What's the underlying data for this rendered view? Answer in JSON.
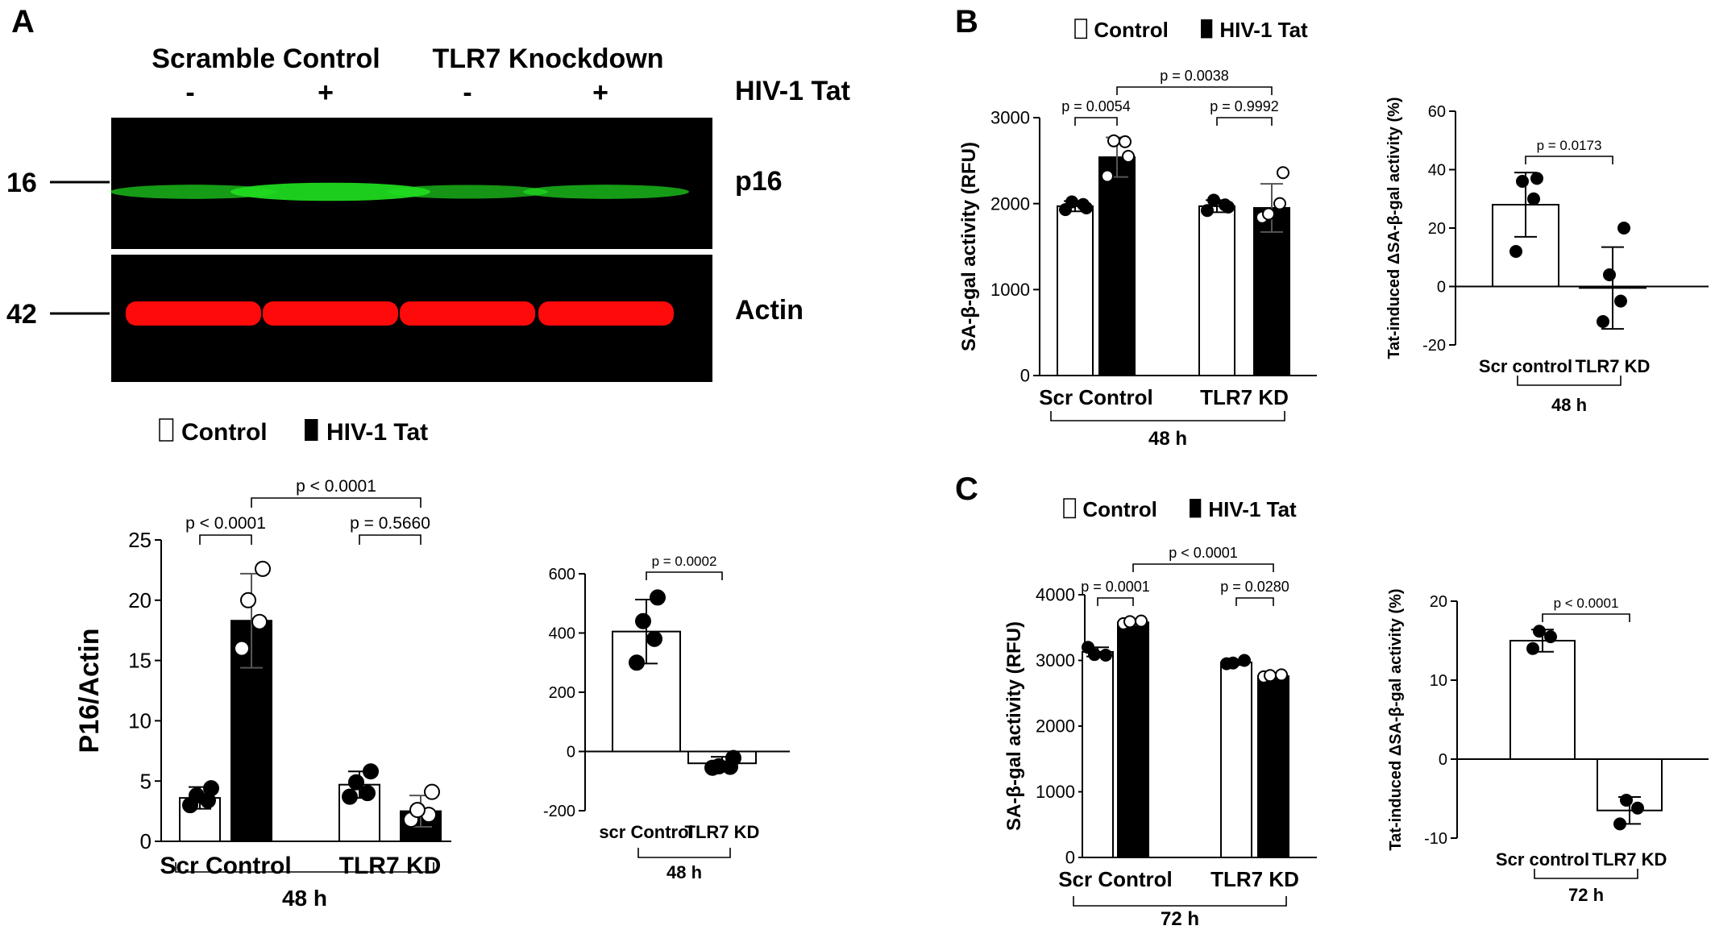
{
  "panels": {
    "A": "A",
    "B": "B",
    "C": "C"
  },
  "western_blot": {
    "group_left": "Scramble Control",
    "group_right": "TLR7 Knockdown",
    "lane_signs": [
      "-",
      "+",
      "-",
      "+"
    ],
    "treatment_label": "HIV-1 Tat",
    "marker_top": "16",
    "marker_bottom": "42",
    "band_label_top": "p16",
    "band_label_bottom": "Actin",
    "band_color_top": "#1fdc1f",
    "band_color_bottom": "#ff0a0a",
    "band_intensity_top": [
      0.55,
      0.9,
      0.5,
      0.55
    ],
    "band_intensity_bottom": [
      1,
      1,
      1,
      1
    ]
  },
  "legend": {
    "control": "Control",
    "tat": "HIV-1 Tat"
  },
  "chart_data": [
    {
      "id": "A-main",
      "type": "bar",
      "ylabel": "P16/Actin",
      "ylim": [
        0,
        25
      ],
      "yticks": [
        "0",
        "5",
        "10",
        "15",
        "20",
        "25"
      ],
      "group_labels": [
        "Scr Control",
        "TLR7 KD"
      ],
      "time_label": "48 h",
      "series": [
        {
          "name": "Control",
          "means": [
            3.6,
            4.7
          ],
          "errors": [
            0.9,
            1.1
          ],
          "points": [
            [
              3.0,
              3.4,
              3.8,
              4.4
            ],
            [
              3.7,
              4.0,
              4.9,
              5.8
            ]
          ]
        },
        {
          "name": "HIV-1 Tat",
          "means": [
            18.3,
            2.5
          ],
          "errors": [
            3.9,
            1.3
          ],
          "points": [
            [
              16.0,
              18.2,
              20.0,
              22.6
            ],
            [
              1.8,
              2.2,
              2.6,
              4.1
            ]
          ]
        }
      ],
      "pvalues": [
        "p < 0.0001",
        "p = 0.5660",
        "p < 0.0001"
      ]
    },
    {
      "id": "A-delta",
      "type": "bar",
      "ylabel": "",
      "ylim": [
        -200,
        600
      ],
      "yticks": [
        "-200",
        "0",
        "200",
        "400",
        "600"
      ],
      "categories": [
        "scr Control",
        "TLR7 KD"
      ],
      "time_label": "48 h",
      "means": [
        405,
        -40
      ],
      "errors": [
        108,
        22
      ],
      "points": [
        [
          300,
          380,
          440,
          520
        ],
        [
          -55,
          -52,
          -50,
          -22
        ]
      ],
      "pvalues": [
        "p = 0.0002"
      ]
    },
    {
      "id": "B-main",
      "type": "bar",
      "ylabel": "SA-β-gal activity (RFU)",
      "ylim": [
        0,
        3000
      ],
      "yticks": [
        "0",
        "1000",
        "2000",
        "3000"
      ],
      "group_labels": [
        "Scr Control",
        "TLR7 KD"
      ],
      "time_label": "48 h",
      "series": [
        {
          "name": "Control",
          "means": [
            1970,
            1970
          ],
          "errors": [
            60,
            70
          ],
          "points": [
            [
              1930,
              1990,
              2020,
              1950
            ],
            [
              1920,
              1985,
              2040,
              1960
            ]
          ]
        },
        {
          "name": "HIV-1 Tat",
          "means": [
            2540,
            1950
          ],
          "errors": [
            230,
            280
          ],
          "points": [
            [
              2320,
              2720,
              2730,
              2550
            ],
            [
              1840,
              2000,
              1880,
              2360
            ]
          ]
        }
      ],
      "pvalues": [
        "p = 0.0054",
        "p = 0.9992",
        "p = 0.0038"
      ]
    },
    {
      "id": "B-delta",
      "type": "bar",
      "ylabel": "Tat-induced ΔSA-β-gal activity (%)",
      "ylim": [
        -20,
        60
      ],
      "yticks": [
        "-20",
        "0",
        "20",
        "40",
        "60"
      ],
      "categories": [
        "Scr control",
        "TLR7 KD"
      ],
      "time_label": "48 h",
      "means": [
        28,
        -0.5
      ],
      "errors": [
        11,
        14
      ],
      "points": [
        [
          12,
          30,
          36,
          37
        ],
        [
          -12,
          -5,
          4,
          20
        ]
      ],
      "pvalues": [
        "p = 0.0173"
      ]
    },
    {
      "id": "C-main",
      "type": "bar",
      "ylabel": "SA-β-gal activity (RFU)",
      "ylim": [
        0,
        4000
      ],
      "yticks": [
        "0",
        "1000",
        "2000",
        "3000",
        "4000"
      ],
      "group_labels": [
        "Scr Control",
        "TLR7 KD"
      ],
      "time_label": "72 h",
      "series": [
        {
          "name": "Control",
          "means": [
            3130,
            2970
          ],
          "errors": [
            70,
            40
          ],
          "points": [
            [
              3200,
              3080,
              3090
            ],
            [
              2950,
              3000,
              2960
            ]
          ]
        },
        {
          "name": "HIV-1 Tat",
          "means": [
            3580,
            2760
          ],
          "errors": [
            40,
            30
          ],
          "points": [
            [
              3560,
              3600,
              3590
            ],
            [
              2750,
              2780,
              2770
            ]
          ]
        }
      ],
      "pvalues": [
        "p = 0.0001",
        "p = 0.0280",
        "p < 0.0001"
      ]
    },
    {
      "id": "C-delta",
      "type": "bar",
      "ylabel": "Tat-induced ΔSA-β-gal activity (%)",
      "ylim": [
        -10,
        20
      ],
      "yticks": [
        "-10",
        "0",
        "10",
        "20"
      ],
      "categories": [
        "Scr control",
        "TLR7 KD"
      ],
      "time_label": "72 h",
      "means": [
        15,
        -6.5
      ],
      "errors": [
        1.4,
        1.7
      ],
      "points": [
        [
          14,
          15.5,
          16.2
        ],
        [
          -8.2,
          -6.2,
          -5.2
        ]
      ],
      "pvalues": [
        "p < 0.0001"
      ]
    }
  ]
}
